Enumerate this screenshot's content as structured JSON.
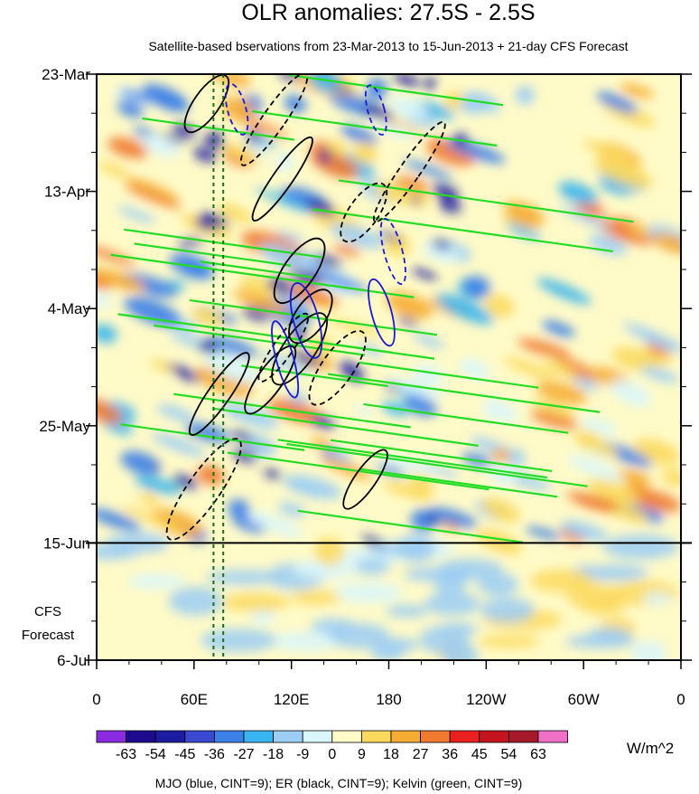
{
  "chart_data": {
    "type": "heatmap",
    "title": "OLR anomalies: 27.5S - 2.5S",
    "subtitle": "Satellite-based bservations from 23-Mar-2013 to 15-Jun-2013 + 21-day CFS Forecast",
    "x_ticks": [
      "0",
      "60E",
      "120E",
      "180",
      "120W",
      "60W",
      "0"
    ],
    "x_lon": [
      0,
      60,
      120,
      180,
      240,
      300,
      360
    ],
    "y_ticks": [
      "23-Mar",
      "13-Apr",
      "4-May",
      "25-May",
      "15-Jun",
      "6-Jul"
    ],
    "y_day": [
      0,
      21,
      42,
      63,
      84,
      105
    ],
    "ylim_days": [
      0,
      105
    ],
    "observed_end_day": 84,
    "forecast_label_line1": "CFS",
    "forecast_label_line2": "Forecast",
    "reference_longitudes_dotted": [
      72,
      78
    ],
    "colorbar_labels": [
      "-63",
      "-54",
      "-45",
      "-36",
      "-27",
      "-18",
      "-9",
      "0",
      "9",
      "18",
      "27",
      "36",
      "45",
      "54",
      "63"
    ],
    "colorbar_colors": [
      "#8a2be2",
      "#1e0a8c",
      "#1c1ca0",
      "#3a4ad0",
      "#3c80e8",
      "#39b4f0",
      "#9ccdf5",
      "#d9f6fb",
      "#fffbc8",
      "#fbd95e",
      "#f6ac34",
      "#f07a30",
      "#e8201e",
      "#c4141e",
      "#a41a2a",
      "#f070c8"
    ],
    "units": "W/m^2",
    "legend_note": "MJO (blue, CINT=9); ER (black, CINT=9); Kelvin (green, CINT=9)",
    "series_colors": {
      "MJO": "#1a1ad0",
      "ER": "#000000",
      "Kelvin": "#22dd22"
    }
  }
}
